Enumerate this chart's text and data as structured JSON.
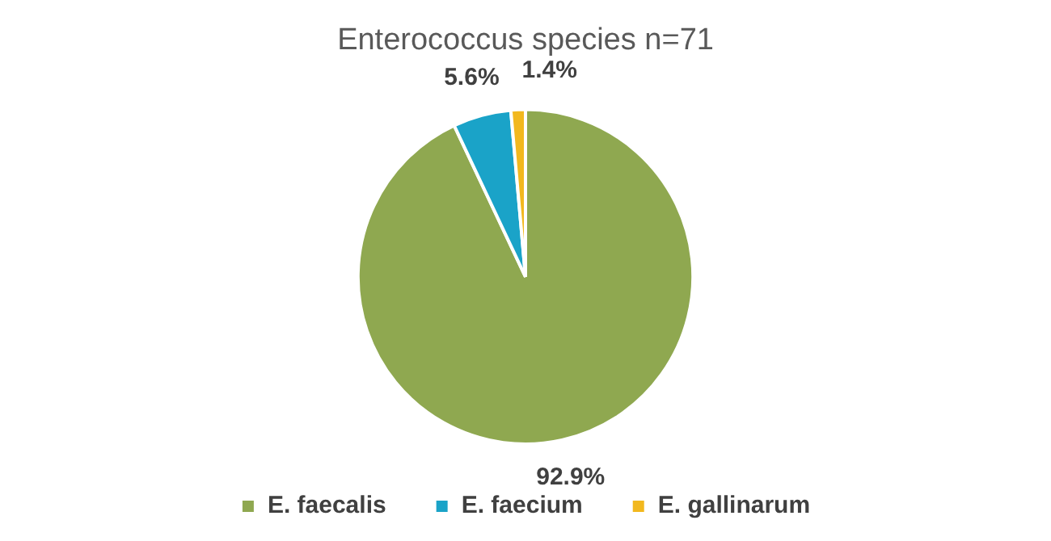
{
  "chart_data": {
    "type": "pie",
    "title": "Enterococcus species n=71",
    "categories": [
      "E. faecalis",
      "E. faecium",
      "E. gallinarum"
    ],
    "values": [
      92.9,
      5.6,
      1.4
    ],
    "value_labels": [
      "92.9%",
      "5.6%",
      "1.4%"
    ],
    "colors": [
      "#8fa850",
      "#1aa3c8",
      "#f2b81e"
    ],
    "legend": "bottom"
  }
}
